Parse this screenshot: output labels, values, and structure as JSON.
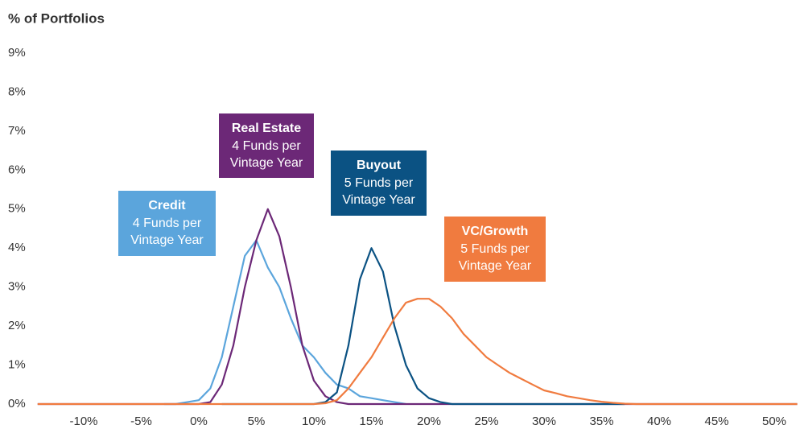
{
  "chart_data": {
    "type": "line",
    "ylabel": "% of Portfolios",
    "x": [
      -14,
      -13,
      -12,
      -11,
      -10,
      -9,
      -8,
      -7,
      -6,
      -5,
      -4,
      -3,
      -2,
      -1,
      0,
      1,
      2,
      3,
      4,
      5,
      6,
      7,
      8,
      9,
      10,
      11,
      12,
      13,
      14,
      15,
      16,
      17,
      18,
      19,
      20,
      21,
      22,
      23,
      24,
      25,
      26,
      27,
      28,
      29,
      30,
      31,
      32,
      33,
      34,
      35,
      36,
      37,
      38,
      39,
      40,
      41,
      42,
      43,
      44,
      45,
      46,
      47,
      48,
      49,
      50,
      51,
      52
    ],
    "series": [
      {
        "name": "Credit",
        "color": "#5ba5dc",
        "values": [
          null,
          null,
          null,
          null,
          null,
          null,
          null,
          null,
          null,
          null,
          null,
          0,
          0,
          0.05,
          0.1,
          0.4,
          1.2,
          2.5,
          3.8,
          4.2,
          3.5,
          3.0,
          2.2,
          1.5,
          1.2,
          0.8,
          0.5,
          0.4,
          0.2,
          0.15,
          0.1,
          0.05,
          0,
          null,
          null,
          null,
          null,
          null,
          null,
          null,
          null,
          null,
          null,
          null,
          null,
          null,
          null,
          null,
          null,
          null,
          null,
          null,
          null,
          null,
          null,
          null,
          null,
          null,
          null,
          null,
          null,
          null,
          null,
          null,
          null,
          null,
          null
        ]
      },
      {
        "name": "Real Estate",
        "color": "#6c2877",
        "values": [
          0,
          0,
          0,
          0,
          0,
          0,
          0,
          0,
          0,
          0,
          0,
          0,
          0,
          0,
          0,
          0.05,
          0.5,
          1.5,
          3.0,
          4.2,
          5.0,
          4.3,
          3.0,
          1.5,
          0.6,
          0.2,
          0.05,
          0,
          0,
          0,
          0,
          0,
          0,
          0,
          0,
          0,
          0,
          0,
          0,
          0,
          0,
          0,
          0,
          0,
          0,
          0,
          0,
          0,
          0,
          0,
          0,
          0,
          0,
          0,
          0,
          0,
          0,
          0,
          0,
          0,
          0,
          0,
          0,
          0,
          0,
          0,
          0
        ]
      },
      {
        "name": "Buyout",
        "color": "#0b5283",
        "values": [
          null,
          null,
          null,
          null,
          null,
          null,
          null,
          null,
          null,
          null,
          null,
          null,
          null,
          null,
          null,
          null,
          0,
          0,
          0,
          0,
          0,
          0,
          0,
          0,
          0,
          0.05,
          0.3,
          1.5,
          3.2,
          4.0,
          3.4,
          2.0,
          1.0,
          0.4,
          0.15,
          0.05,
          0,
          0,
          0,
          0,
          0,
          0,
          0,
          0,
          0,
          0,
          0,
          0,
          0,
          0,
          0,
          0,
          null,
          null,
          null,
          null,
          null,
          null,
          null,
          null,
          null,
          null,
          null,
          null,
          null,
          null,
          null
        ]
      },
      {
        "name": "VC/Growth",
        "color": "#f07b3f",
        "values": [
          0,
          0,
          0,
          0,
          0,
          0,
          0,
          0,
          0,
          0,
          0,
          0,
          0,
          0,
          0,
          0,
          0,
          0,
          0,
          0,
          0,
          0,
          0,
          0,
          0,
          0.02,
          0.1,
          0.4,
          0.8,
          1.2,
          1.7,
          2.2,
          2.6,
          2.7,
          2.7,
          2.5,
          2.2,
          1.8,
          1.5,
          1.2,
          1.0,
          0.8,
          0.65,
          0.5,
          0.35,
          0.28,
          0.2,
          0.15,
          0.1,
          0.06,
          0.03,
          0.01,
          0,
          0,
          0,
          0,
          0,
          0,
          0,
          0,
          0,
          0,
          0,
          0,
          0,
          0,
          0
        ]
      }
    ],
    "annotations": [
      {
        "title": "Credit",
        "lines": [
          "4 Funds per",
          "Vintage Year"
        ],
        "color": "#5ba5dc"
      },
      {
        "title": "Real Estate",
        "lines": [
          "4 Funds per",
          "Vintage Year"
        ],
        "color": "#6c2877"
      },
      {
        "title": "Buyout",
        "lines": [
          "5 Funds per",
          "Vintage Year"
        ],
        "color": "#0b5283"
      },
      {
        "title": "VC/Growth",
        "lines": [
          "5 Funds per",
          "Vintage Year"
        ],
        "color": "#f07b3f"
      }
    ],
    "xlim": [
      -14,
      52
    ],
    "ylim": [
      0,
      9
    ],
    "xticks": [
      {
        "value": -10,
        "label": "-10%"
      },
      {
        "value": -5,
        "label": "-5%"
      },
      {
        "value": 0,
        "label": "0%"
      },
      {
        "value": 5,
        "label": "5%"
      },
      {
        "value": 10,
        "label": "10%"
      },
      {
        "value": 15,
        "label": "15%"
      },
      {
        "value": 20,
        "label": "20%"
      },
      {
        "value": 25,
        "label": "25%"
      },
      {
        "value": 30,
        "label": "30%"
      },
      {
        "value": 35,
        "label": "35%"
      },
      {
        "value": 40,
        "label": "40%"
      },
      {
        "value": 45,
        "label": "45%"
      },
      {
        "value": 50,
        "label": "50%"
      }
    ],
    "yticks": [
      {
        "value": 0,
        "label": "0%"
      },
      {
        "value": 1,
        "label": "1%"
      },
      {
        "value": 2,
        "label": "2%"
      },
      {
        "value": 3,
        "label": "3%"
      },
      {
        "value": 4,
        "label": "4%"
      },
      {
        "value": 5,
        "label": "5%"
      },
      {
        "value": 6,
        "label": "6%"
      },
      {
        "value": 7,
        "label": "7%"
      },
      {
        "value": 8,
        "label": "8%"
      },
      {
        "value": 9,
        "label": "9%"
      }
    ],
    "grid": false
  }
}
